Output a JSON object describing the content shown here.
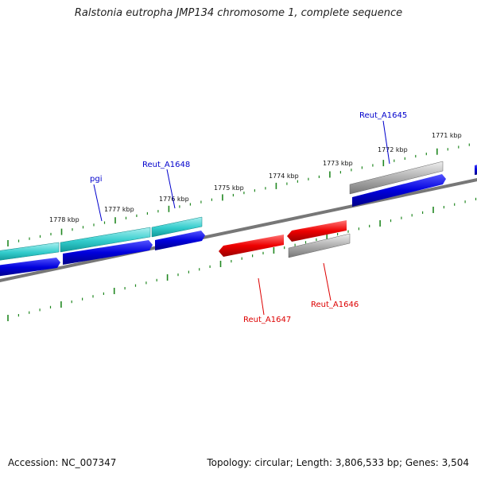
{
  "title": "Ralstonia eutropha JMP134 chromosome 1, complete sequence",
  "footer": {
    "accession": "Accession: NC_007347",
    "topology": "Topology: circular; Length: 3,806,533 bp; Genes: 3,504"
  },
  "scale_labels": [
    "1771 kbp",
    "1772 kbp",
    "1773 kbp",
    "1774 kbp",
    "1775 kbp",
    "1776 kbp",
    "1777 kbp",
    "1778 kbp"
  ],
  "gene_labels": [
    {
      "name": "pgi",
      "strand": "forward",
      "color": "#0000cc"
    },
    {
      "name": "Reut_A1648",
      "strand": "forward",
      "color": "#0000cc"
    },
    {
      "name": "Reut_A1645",
      "strand": "forward",
      "color": "#0000cc"
    },
    {
      "name": "Reut_A1647",
      "strand": "reverse",
      "color": "#dd0000"
    },
    {
      "name": "Reut_A1646",
      "strand": "reverse",
      "color": "#dd0000"
    }
  ],
  "colors": {
    "backbone": "#777777",
    "forward_cds": "#0000dd",
    "reverse_cds": "#ee0000",
    "gene_teal": "#33cccc",
    "gene_gray": "#aaaaaa",
    "ticks": "#228822"
  }
}
